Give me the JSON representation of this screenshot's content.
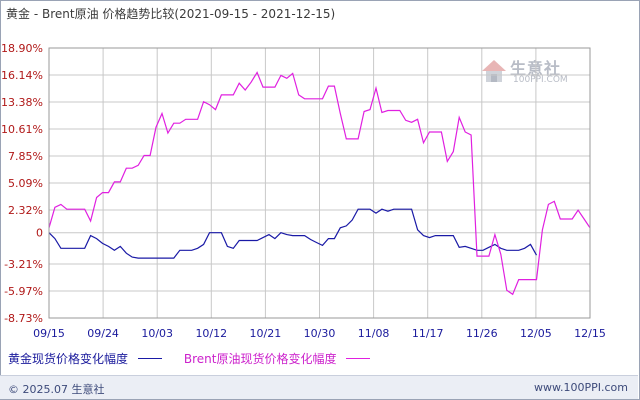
{
  "chart_data": {
    "type": "line",
    "title_parts": [
      "黄金",
      " - ",
      "Brent原油",
      " 价格趋势比较",
      "(2021-09-15 - 2021-12-15)"
    ],
    "yticks": [
      "18.90%",
      "16.14%",
      "13.38%",
      "10.61%",
      "7.85%",
      "5.09%",
      "2.32%",
      "0",
      "-3.21%",
      "-5.97%",
      "-8.73%"
    ],
    "ytick_values": [
      18.9,
      16.14,
      13.38,
      10.61,
      7.85,
      5.09,
      2.32,
      0,
      -3.21,
      -5.97,
      -8.73
    ],
    "xticks": [
      "09/15",
      "09/24",
      "10/03",
      "10/12",
      "10/21",
      "10/30",
      "11/08",
      "11/17",
      "11/26",
      "12/05",
      "12/15"
    ],
    "grid": true,
    "colors": {
      "gold": "#1a1aa6",
      "brent": "#e020e0",
      "grid": "#c8c8c8",
      "axis": "#888888"
    },
    "series": [
      {
        "name": "黄金现货价格变化幅度",
        "values": [
          [
            0,
            0.0
          ],
          [
            1,
            -0.6
          ],
          [
            2,
            -1.6
          ],
          [
            3,
            -1.6
          ],
          [
            4,
            -1.6
          ],
          [
            5,
            -1.6
          ],
          [
            6,
            -1.6
          ],
          [
            7,
            -0.3
          ],
          [
            8,
            -0.6
          ],
          [
            9,
            -1.1
          ],
          [
            10,
            -1.4
          ],
          [
            11,
            -1.8
          ],
          [
            12,
            -1.4
          ],
          [
            13,
            -2.1
          ],
          [
            14,
            -2.5
          ],
          [
            15,
            -2.6
          ],
          [
            16,
            -2.6
          ],
          [
            17,
            -2.6
          ],
          [
            18,
            -2.6
          ],
          [
            19,
            -2.6
          ],
          [
            20,
            -2.6
          ],
          [
            21,
            -2.6
          ],
          [
            22,
            -1.8
          ],
          [
            23,
            -1.8
          ],
          [
            24,
            -1.8
          ],
          [
            25,
            -1.6
          ],
          [
            26,
            -1.2
          ],
          [
            27,
            0.0
          ],
          [
            28,
            0.0
          ],
          [
            29,
            0.0
          ],
          [
            30,
            -1.4
          ],
          [
            31,
            -1.6
          ],
          [
            32,
            -0.8
          ],
          [
            33,
            -0.8
          ],
          [
            34,
            -0.8
          ],
          [
            35,
            -0.8
          ],
          [
            36,
            -0.5
          ],
          [
            37,
            -0.2
          ],
          [
            38,
            -0.6
          ],
          [
            39,
            0.0
          ],
          [
            40,
            -0.2
          ],
          [
            41,
            -0.3
          ],
          [
            42,
            -0.3
          ],
          [
            43,
            -0.3
          ],
          [
            44,
            -0.7
          ],
          [
            45,
            -1.0
          ],
          [
            46,
            -1.3
          ],
          [
            47,
            -0.6
          ],
          [
            48,
            -0.6
          ],
          [
            49,
            0.5
          ],
          [
            50,
            0.7
          ],
          [
            51,
            1.3
          ],
          [
            52,
            2.4
          ],
          [
            53,
            2.4
          ],
          [
            54,
            2.4
          ],
          [
            55,
            2.0
          ],
          [
            56,
            2.4
          ],
          [
            57,
            2.2
          ],
          [
            58,
            2.4
          ],
          [
            59,
            2.4
          ],
          [
            60,
            2.4
          ],
          [
            61,
            2.4
          ],
          [
            62,
            0.3
          ],
          [
            63,
            -0.3
          ],
          [
            64,
            -0.5
          ],
          [
            65,
            -0.3
          ],
          [
            66,
            -0.3
          ],
          [
            67,
            -0.3
          ],
          [
            68,
            -0.3
          ],
          [
            69,
            -1.5
          ],
          [
            70,
            -1.4
          ],
          [
            71,
            -1.6
          ],
          [
            72,
            -1.8
          ],
          [
            73,
            -1.8
          ],
          [
            74,
            -1.5
          ],
          [
            75,
            -1.2
          ],
          [
            76,
            -1.6
          ],
          [
            77,
            -1.8
          ],
          [
            78,
            -1.8
          ],
          [
            79,
            -1.8
          ],
          [
            80,
            -1.6
          ],
          [
            81,
            -1.2
          ],
          [
            82,
            -2.3
          ]
        ]
      },
      {
        "name": "Brent原油现货价格变化幅度",
        "values": [
          [
            0,
            0.5
          ],
          [
            1,
            2.6
          ],
          [
            2,
            2.9
          ],
          [
            3,
            2.4
          ],
          [
            4,
            2.4
          ],
          [
            5,
            2.4
          ],
          [
            6,
            2.4
          ],
          [
            7,
            1.2
          ],
          [
            8,
            3.6
          ],
          [
            9,
            4.1
          ],
          [
            10,
            4.1
          ],
          [
            11,
            5.2
          ],
          [
            12,
            5.2
          ],
          [
            13,
            6.6
          ],
          [
            14,
            6.6
          ],
          [
            15,
            6.9
          ],
          [
            16,
            7.9
          ],
          [
            17,
            7.9
          ],
          [
            18,
            10.8
          ],
          [
            19,
            12.2
          ],
          [
            20,
            10.2
          ],
          [
            21,
            11.2
          ],
          [
            22,
            11.2
          ],
          [
            23,
            11.6
          ],
          [
            24,
            11.6
          ],
          [
            25,
            11.6
          ],
          [
            26,
            13.4
          ],
          [
            27,
            13.1
          ],
          [
            28,
            12.6
          ],
          [
            29,
            14.1
          ],
          [
            30,
            14.1
          ],
          [
            31,
            14.1
          ],
          [
            32,
            15.3
          ],
          [
            33,
            14.6
          ],
          [
            34,
            15.4
          ],
          [
            35,
            16.4
          ],
          [
            36,
            14.9
          ],
          [
            37,
            14.9
          ],
          [
            38,
            14.9
          ],
          [
            39,
            16.1
          ],
          [
            40,
            15.8
          ],
          [
            41,
            16.3
          ],
          [
            42,
            14.1
          ],
          [
            43,
            13.7
          ],
          [
            44,
            13.7
          ],
          [
            45,
            13.7
          ],
          [
            46,
            13.7
          ],
          [
            47,
            15.0
          ],
          [
            48,
            15.0
          ],
          [
            49,
            12.2
          ],
          [
            50,
            9.6
          ],
          [
            51,
            9.6
          ],
          [
            52,
            9.6
          ],
          [
            53,
            12.4
          ],
          [
            54,
            12.6
          ],
          [
            55,
            14.8
          ],
          [
            56,
            12.3
          ],
          [
            57,
            12.5
          ],
          [
            58,
            12.5
          ],
          [
            59,
            12.5
          ],
          [
            60,
            11.5
          ],
          [
            61,
            11.3
          ],
          [
            62,
            11.6
          ],
          [
            63,
            9.2
          ],
          [
            64,
            10.3
          ],
          [
            65,
            10.3
          ],
          [
            66,
            10.3
          ],
          [
            67,
            7.3
          ],
          [
            68,
            8.3
          ],
          [
            69,
            11.8
          ],
          [
            70,
            10.3
          ],
          [
            71,
            10.0
          ],
          [
            72,
            -2.4
          ],
          [
            73,
            -2.4
          ],
          [
            74,
            -2.4
          ],
          [
            75,
            -0.2
          ],
          [
            76,
            -2.2
          ],
          [
            77,
            -5.9
          ],
          [
            78,
            -6.3
          ],
          [
            79,
            -4.8
          ],
          [
            80,
            -4.8
          ],
          [
            81,
            -4.8
          ],
          [
            82,
            -4.8
          ],
          [
            83,
            0.3
          ],
          [
            84,
            2.9
          ],
          [
            85,
            3.2
          ],
          [
            86,
            1.4
          ],
          [
            87,
            1.4
          ],
          [
            88,
            1.4
          ],
          [
            89,
            2.3
          ],
          [
            90,
            1.4
          ],
          [
            91,
            0.5
          ]
        ]
      }
    ]
  },
  "legend": {
    "gold": "黄金现货价格变化幅度",
    "brent": "Brent原油现货价格变化幅度"
  },
  "watermark": {
    "name": "生意社",
    "url": "100PPI.COM"
  },
  "footer": {
    "copyright": "© 2025.07 生意社",
    "site": "www.100PPI.com"
  }
}
